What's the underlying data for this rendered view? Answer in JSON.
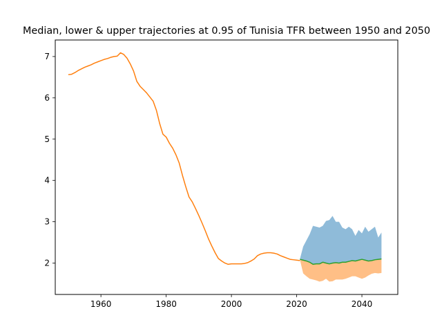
{
  "chart_data": {
    "type": "line",
    "title": "Median, lower & upper trajectories at 0.95 of Tunisia TFR between 1950 and 2050",
    "xlabel": "",
    "ylabel": "",
    "xlim": [
      1946,
      2051
    ],
    "ylim": [
      1.24,
      7.4
    ],
    "xticks": [
      1960,
      1980,
      2000,
      2020,
      2040
    ],
    "yticks": [
      2,
      3,
      4,
      5,
      6,
      7
    ],
    "grid": false,
    "colors": {
      "upper_band": "#1f77b4",
      "lower_band": "#ff7f0e",
      "historical_line": "#ff7f0e",
      "median_line": "#2ca02c"
    },
    "historical": {
      "x": [
        1950,
        1951,
        1952,
        1953,
        1954,
        1955,
        1956,
        1957,
        1958,
        1959,
        1960,
        1961,
        1962,
        1963,
        1964,
        1965,
        1966,
        1967,
        1968,
        1969,
        1970,
        1971,
        1972,
        1973,
        1974,
        1975,
        1976,
        1977,
        1978,
        1979,
        1980,
        1981,
        1982,
        1983,
        1984,
        1985,
        1986,
        1987,
        1988,
        1989,
        1990,
        1991,
        1992,
        1993,
        1994,
        1995,
        1996,
        1997,
        1998,
        1999,
        2000,
        2001,
        2002,
        2003,
        2004,
        2005,
        2006,
        2007,
        2008,
        2009,
        2010,
        2011,
        2012,
        2013,
        2014,
        2015,
        2016,
        2017,
        2018,
        2019,
        2020,
        2021
      ],
      "y": [
        6.56,
        6.57,
        6.61,
        6.66,
        6.7,
        6.74,
        6.77,
        6.8,
        6.84,
        6.87,
        6.9,
        6.93,
        6.95,
        6.98,
        7.0,
        7.01,
        7.09,
        7.05,
        6.96,
        6.82,
        6.65,
        6.4,
        6.28,
        6.2,
        6.12,
        6.02,
        5.92,
        5.7,
        5.38,
        5.12,
        5.05,
        4.9,
        4.78,
        4.62,
        4.42,
        4.12,
        3.85,
        3.6,
        3.48,
        3.32,
        3.15,
        2.97,
        2.78,
        2.58,
        2.41,
        2.25,
        2.11,
        2.05,
        2.0,
        1.97,
        1.98,
        1.98,
        1.98,
        1.98,
        1.99,
        2.01,
        2.05,
        2.1,
        2.18,
        2.22,
        2.24,
        2.25,
        2.25,
        2.24,
        2.22,
        2.18,
        2.15,
        2.12,
        2.09,
        2.08,
        2.07,
        2.06
      ]
    },
    "projection": {
      "x": [
        2021,
        2022,
        2023,
        2024,
        2025,
        2026,
        2027,
        2028,
        2029,
        2030,
        2031,
        2032,
        2033,
        2034,
        2035,
        2036,
        2037,
        2038,
        2039,
        2040,
        2041,
        2042,
        2043,
        2044,
        2045,
        2046
      ],
      "median": [
        2.09,
        2.07,
        2.05,
        2.02,
        1.97,
        1.98,
        1.98,
        2.02,
        2.0,
        1.98,
        2.0,
        2.01,
        2.0,
        2.02,
        2.02,
        2.04,
        2.06,
        2.05,
        2.07,
        2.09,
        2.07,
        2.05,
        2.06,
        2.08,
        2.09,
        2.1
      ],
      "upper": [
        2.1,
        2.4,
        2.55,
        2.7,
        2.9,
        2.88,
        2.86,
        2.9,
        3.02,
        3.04,
        3.14,
        3.0,
        3.0,
        2.86,
        2.82,
        2.88,
        2.82,
        2.66,
        2.8,
        2.72,
        2.88,
        2.76,
        2.82,
        2.88,
        2.62,
        2.74
      ],
      "lower": [
        2.08,
        1.75,
        1.68,
        1.62,
        1.6,
        1.58,
        1.55,
        1.57,
        1.62,
        1.55,
        1.56,
        1.6,
        1.6,
        1.6,
        1.62,
        1.65,
        1.68,
        1.68,
        1.65,
        1.62,
        1.65,
        1.7,
        1.74,
        1.76,
        1.75,
        1.76
      ]
    }
  }
}
